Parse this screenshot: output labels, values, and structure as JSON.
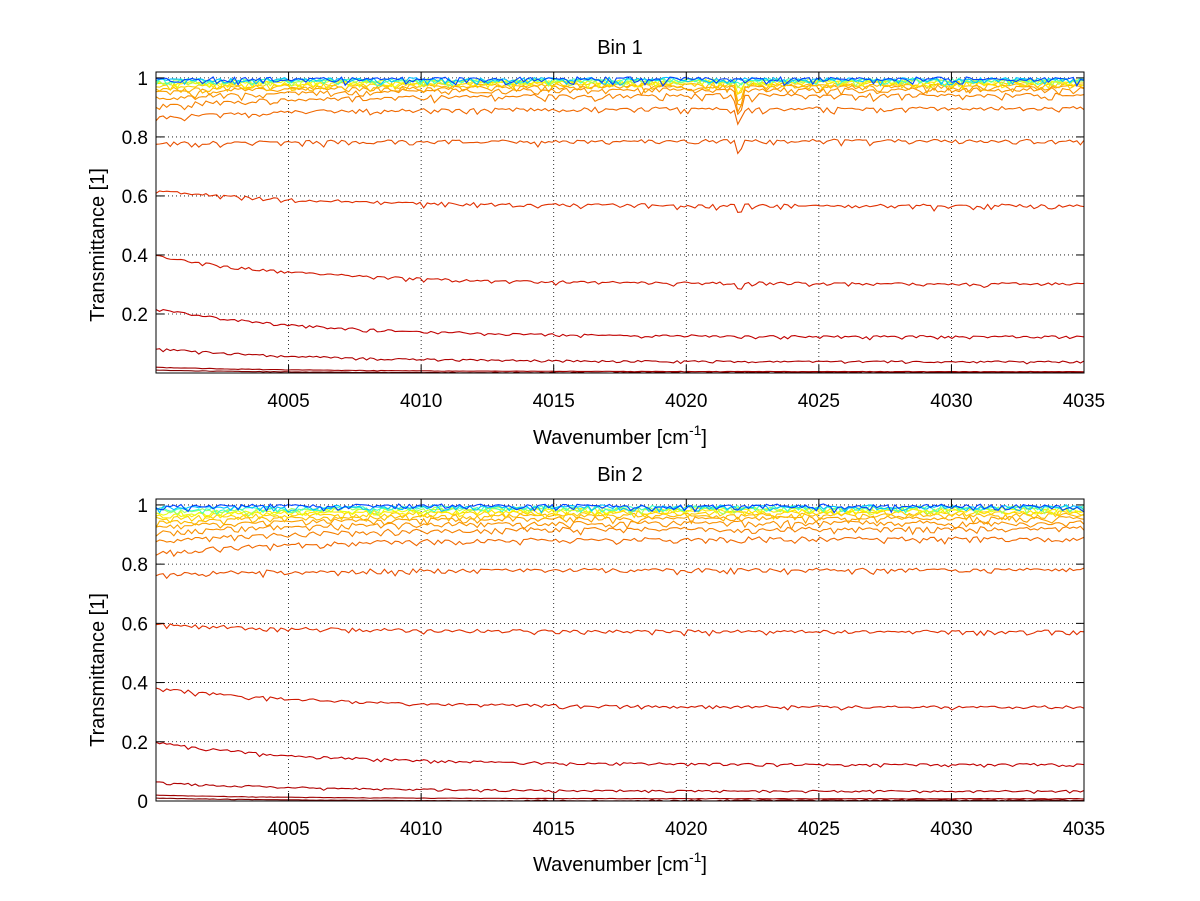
{
  "chart_data": [
    {
      "type": "line",
      "title": "Bin 1",
      "xlabel": "Wavenumber [cm",
      "xlabel_sup": "-1",
      "xlabel_suffix": "]",
      "ylabel": "Transmittance [1]",
      "xlim": [
        4000,
        4035
      ],
      "ylim": [
        0,
        1.02
      ],
      "grid": true,
      "x_ticks": [
        4005,
        4010,
        4015,
        4020,
        4025,
        4030,
        4035
      ],
      "x_tick_labels": [
        "4005",
        "4010",
        "4015",
        "4020",
        "4025",
        "4030",
        "4035"
      ],
      "y_ticks": [
        0.2,
        0.4,
        0.6,
        0.8,
        1
      ],
      "y_tick_labels": [
        "0.2",
        "0.4",
        "0.6",
        "0.8",
        "1"
      ],
      "legend": "none",
      "dip_x": 4022,
      "series": [
        {
          "color": "#800000",
          "start": 0.01,
          "end": 0.0,
          "dip": 0.0
        },
        {
          "color": "#a00000",
          "start": 0.02,
          "end": 0.005,
          "dip": 0.0
        },
        {
          "color": "#b00000",
          "start": 0.085,
          "end": 0.04,
          "dip": 0.0
        },
        {
          "color": "#c00000",
          "start": 0.22,
          "end": 0.125,
          "dip": 0.01
        },
        {
          "color": "#d01800",
          "start": 0.4,
          "end": 0.305,
          "dip": 0.02
        },
        {
          "color": "#e03000",
          "start": 0.62,
          "end": 0.57,
          "dip": 0.04
        },
        {
          "color": "#e85000",
          "start": 0.78,
          "end": 0.79,
          "dip": 0.06
        },
        {
          "color": "#f06800",
          "start": 0.87,
          "end": 0.9,
          "dip": 0.07
        },
        {
          "color": "#f58000",
          "start": 0.91,
          "end": 0.945,
          "dip": 0.1
        },
        {
          "color": "#f89000",
          "start": 0.935,
          "end": 0.965,
          "dip": 0.12
        },
        {
          "color": "#faa000",
          "start": 0.955,
          "end": 0.975,
          "dip": 0.1
        },
        {
          "color": "#fcb800",
          "start": 0.965,
          "end": 0.98,
          "dip": 0.08
        },
        {
          "color": "#fdd000",
          "start": 0.975,
          "end": 0.985,
          "dip": 0.06
        },
        {
          "color": "#ffe800",
          "start": 0.982,
          "end": 0.99,
          "dip": 0.04
        },
        {
          "color": "#e8ff10",
          "start": 0.988,
          "end": 0.993,
          "dip": 0.03
        },
        {
          "color": "#a0ff60",
          "start": 0.992,
          "end": 0.995,
          "dip": 0.02
        },
        {
          "color": "#40ffc0",
          "start": 0.995,
          "end": 0.997,
          "dip": 0.01
        },
        {
          "color": "#00c0ff",
          "start": 0.998,
          "end": 0.999,
          "dip": 0.005
        },
        {
          "color": "#0040ff",
          "start": 1.0,
          "end": 1.0,
          "dip": 0.0
        }
      ]
    },
    {
      "type": "line",
      "title": "Bin 2",
      "xlabel": "Wavenumber [cm",
      "xlabel_sup": "-1",
      "xlabel_suffix": "]",
      "ylabel": "Transmittance [1]",
      "xlim": [
        4000,
        4035
      ],
      "ylim": [
        0,
        1.02
      ],
      "grid": true,
      "x_ticks": [
        4005,
        4010,
        4015,
        4020,
        4025,
        4030,
        4035
      ],
      "x_tick_labels": [
        "4005",
        "4010",
        "4015",
        "4020",
        "4025",
        "4030",
        "4035"
      ],
      "y_ticks": [
        0,
        0.2,
        0.4,
        0.6,
        0.8,
        1
      ],
      "y_tick_labels": [
        "0",
        "0.2",
        "0.4",
        "0.6",
        "0.8",
        "1"
      ],
      "legend": "none",
      "dip_x": 4022,
      "series": [
        {
          "color": "#800000",
          "start": 0.01,
          "end": 0.0,
          "dip": 0.0
        },
        {
          "color": "#a00000",
          "start": 0.02,
          "end": 0.008,
          "dip": 0.0
        },
        {
          "color": "#b00000",
          "start": 0.065,
          "end": 0.035,
          "dip": 0.0
        },
        {
          "color": "#c00000",
          "start": 0.2,
          "end": 0.125,
          "dip": 0.0
        },
        {
          "color": "#d01800",
          "start": 0.385,
          "end": 0.32,
          "dip": 0.0
        },
        {
          "color": "#e03000",
          "start": 0.6,
          "end": 0.575,
          "dip": 0.0
        },
        {
          "color": "#e85000",
          "start": 0.77,
          "end": 0.785,
          "dip": 0.0
        },
        {
          "color": "#f06800",
          "start": 0.84,
          "end": 0.89,
          "dip": 0.0
        },
        {
          "color": "#f58000",
          "start": 0.88,
          "end": 0.925,
          "dip": 0.0
        },
        {
          "color": "#f89000",
          "start": 0.91,
          "end": 0.945,
          "dip": 0.0
        },
        {
          "color": "#faa000",
          "start": 0.93,
          "end": 0.96,
          "dip": 0.0
        },
        {
          "color": "#fcb800",
          "start": 0.945,
          "end": 0.97,
          "dip": 0.0
        },
        {
          "color": "#fdd000",
          "start": 0.958,
          "end": 0.978,
          "dip": 0.0
        },
        {
          "color": "#ffe800",
          "start": 0.968,
          "end": 0.984,
          "dip": 0.0
        },
        {
          "color": "#e8ff10",
          "start": 0.976,
          "end": 0.989,
          "dip": 0.0
        },
        {
          "color": "#a0ff60",
          "start": 0.984,
          "end": 0.993,
          "dip": 0.0
        },
        {
          "color": "#40ffc0",
          "start": 0.99,
          "end": 0.996,
          "dip": 0.0
        },
        {
          "color": "#00c0ff",
          "start": 0.995,
          "end": 0.998,
          "dip": 0.0
        },
        {
          "color": "#0040ff",
          "start": 1.0,
          "end": 1.0,
          "dip": 0.0
        }
      ]
    }
  ]
}
